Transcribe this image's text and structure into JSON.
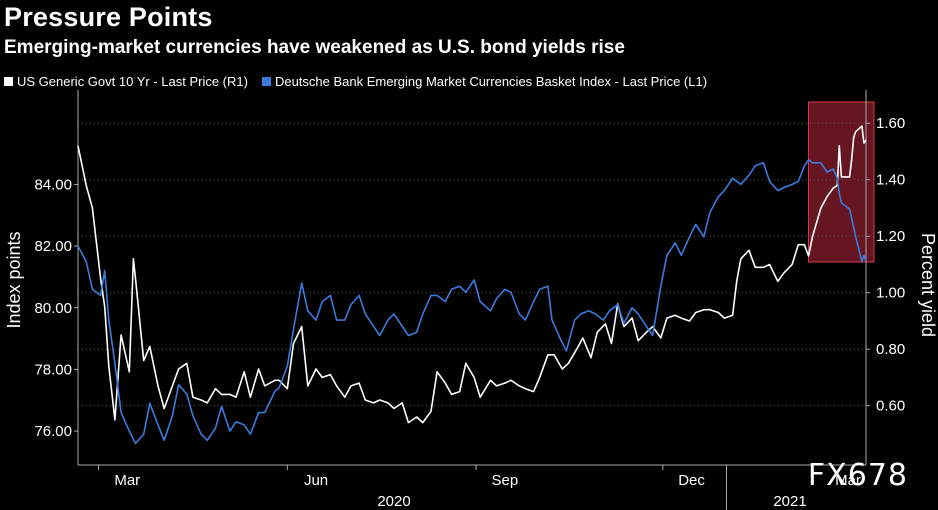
{
  "header": {
    "title": "Pressure Points",
    "subtitle": "Emerging-market currencies have weakened as U.S. bond yields rise"
  },
  "legend": [
    {
      "label": "US Generic Govt 10 Yr - Last Price (R1)",
      "color": "#ffffff"
    },
    {
      "label": "Deutsche Bank Emerging Market Currencies Basket Index - Last Price (L1)",
      "color": "#3b7bdc"
    }
  ],
  "watermark": "FX678",
  "chart_data": {
    "type": "line",
    "title": "Pressure Points",
    "subtitle": "Emerging-market currencies have weakened as U.S. bond yields rise",
    "ylabel_left": "Index points",
    "ylabel_right": "Percent yield",
    "ylim_left": [
      74.9,
      86.9
    ],
    "ylim_right": [
      0.39,
      1.7
    ],
    "yticks_left": [
      "76.00",
      "78.00",
      "80.00",
      "82.00",
      "84.00"
    ],
    "yticks_right": [
      "0.60",
      "0.80",
      "1.00",
      "1.20",
      "1.40",
      "1.60"
    ],
    "xticks": [
      "Mar",
      "Jun",
      "Sep",
      "Dec",
      "Mar"
    ],
    "year_labels": [
      "2020",
      "2021"
    ],
    "x_range": [
      "2020-02-20",
      "2021-03-10"
    ],
    "grid": true,
    "highlight": {
      "x_from": "2021-02-10",
      "x_to": "2021-03-10",
      "color": "#b8283a"
    },
    "series": [
      {
        "name": "US Generic Govt 10 Yr - Last Price (R1)",
        "axis": "right",
        "color": "#ffffff",
        "points": [
          [
            "2020-02-20",
            1.52
          ],
          [
            "2020-02-24",
            1.38
          ],
          [
            "2020-02-27",
            1.3
          ],
          [
            "2020-03-02",
            1.05
          ],
          [
            "2020-03-04",
            0.95
          ],
          [
            "2020-03-06",
            0.74
          ],
          [
            "2020-03-09",
            0.55
          ],
          [
            "2020-03-12",
            0.85
          ],
          [
            "2020-03-16",
            0.72
          ],
          [
            "2020-03-18",
            1.12
          ],
          [
            "2020-03-19",
            1.05
          ],
          [
            "2020-03-23",
            0.76
          ],
          [
            "2020-03-26",
            0.81
          ],
          [
            "2020-03-30",
            0.67
          ],
          [
            "2020-04-02",
            0.59
          ],
          [
            "2020-04-06",
            0.67
          ],
          [
            "2020-04-09",
            0.73
          ],
          [
            "2020-04-13",
            0.75
          ],
          [
            "2020-04-16",
            0.63
          ],
          [
            "2020-04-20",
            0.62
          ],
          [
            "2020-04-23",
            0.61
          ],
          [
            "2020-04-27",
            0.66
          ],
          [
            "2020-04-30",
            0.64
          ],
          [
            "2020-05-04",
            0.64
          ],
          [
            "2020-05-07",
            0.63
          ],
          [
            "2020-05-11",
            0.72
          ],
          [
            "2020-05-14",
            0.63
          ],
          [
            "2020-05-18",
            0.73
          ],
          [
            "2020-05-21",
            0.67
          ],
          [
            "2020-05-26",
            0.69
          ],
          [
            "2020-05-28",
            0.69
          ],
          [
            "2020-06-01",
            0.66
          ],
          [
            "2020-06-04",
            0.82
          ],
          [
            "2020-06-08",
            0.88
          ],
          [
            "2020-06-11",
            0.67
          ],
          [
            "2020-06-15",
            0.73
          ],
          [
            "2020-06-18",
            0.7
          ],
          [
            "2020-06-22",
            0.71
          ],
          [
            "2020-06-25",
            0.67
          ],
          [
            "2020-06-29",
            0.63
          ],
          [
            "2020-07-02",
            0.67
          ],
          [
            "2020-07-06",
            0.68
          ],
          [
            "2020-07-09",
            0.62
          ],
          [
            "2020-07-13",
            0.61
          ],
          [
            "2020-07-16",
            0.62
          ],
          [
            "2020-07-20",
            0.61
          ],
          [
            "2020-07-23",
            0.59
          ],
          [
            "2020-07-27",
            0.61
          ],
          [
            "2020-07-30",
            0.54
          ],
          [
            "2020-08-03",
            0.56
          ],
          [
            "2020-08-06",
            0.54
          ],
          [
            "2020-08-10",
            0.58
          ],
          [
            "2020-08-13",
            0.72
          ],
          [
            "2020-08-17",
            0.68
          ],
          [
            "2020-08-20",
            0.64
          ],
          [
            "2020-08-24",
            0.65
          ],
          [
            "2020-08-27",
            0.75
          ],
          [
            "2020-08-31",
            0.7
          ],
          [
            "2020-09-03",
            0.63
          ],
          [
            "2020-09-08",
            0.69
          ],
          [
            "2020-09-11",
            0.67
          ],
          [
            "2020-09-15",
            0.68
          ],
          [
            "2020-09-18",
            0.69
          ],
          [
            "2020-09-22",
            0.67
          ],
          [
            "2020-09-25",
            0.66
          ],
          [
            "2020-09-29",
            0.65
          ],
          [
            "2020-10-02",
            0.7
          ],
          [
            "2020-10-06",
            0.78
          ],
          [
            "2020-10-09",
            0.78
          ],
          [
            "2020-10-13",
            0.73
          ],
          [
            "2020-10-16",
            0.75
          ],
          [
            "2020-10-20",
            0.8
          ],
          [
            "2020-10-23",
            0.84
          ],
          [
            "2020-10-27",
            0.77
          ],
          [
            "2020-10-30",
            0.86
          ],
          [
            "2020-11-03",
            0.89
          ],
          [
            "2020-11-06",
            0.82
          ],
          [
            "2020-11-09",
            0.96
          ],
          [
            "2020-11-12",
            0.88
          ],
          [
            "2020-11-16",
            0.91
          ],
          [
            "2020-11-19",
            0.83
          ],
          [
            "2020-11-23",
            0.86
          ],
          [
            "2020-11-26",
            0.88
          ],
          [
            "2020-11-30",
            0.84
          ],
          [
            "2020-12-03",
            0.91
          ],
          [
            "2020-12-07",
            0.92
          ],
          [
            "2020-12-10",
            0.91
          ],
          [
            "2020-12-14",
            0.9
          ],
          [
            "2020-12-17",
            0.93
          ],
          [
            "2020-12-21",
            0.94
          ],
          [
            "2020-12-24",
            0.94
          ],
          [
            "2020-12-28",
            0.93
          ],
          [
            "2020-12-31",
            0.91
          ],
          [
            "2021-01-04",
            0.92
          ],
          [
            "2021-01-06",
            1.04
          ],
          [
            "2021-01-08",
            1.12
          ],
          [
            "2021-01-12",
            1.15
          ],
          [
            "2021-01-15",
            1.09
          ],
          [
            "2021-01-19",
            1.09
          ],
          [
            "2021-01-22",
            1.1
          ],
          [
            "2021-01-26",
            1.04
          ],
          [
            "2021-01-29",
            1.07
          ],
          [
            "2021-02-02",
            1.1
          ],
          [
            "2021-02-05",
            1.17
          ],
          [
            "2021-02-08",
            1.17
          ],
          [
            "2021-02-10",
            1.13
          ],
          [
            "2021-02-12",
            1.2
          ],
          [
            "2021-02-16",
            1.3
          ],
          [
            "2021-02-19",
            1.34
          ],
          [
            "2021-02-22",
            1.37
          ],
          [
            "2021-02-24",
            1.38
          ],
          [
            "2021-02-25",
            1.52
          ],
          [
            "2021-02-26",
            1.41
          ],
          [
            "2021-03-02",
            1.41
          ],
          [
            "2021-03-03",
            1.47
          ],
          [
            "2021-03-04",
            1.55
          ],
          [
            "2021-03-05",
            1.57
          ],
          [
            "2021-03-08",
            1.59
          ],
          [
            "2021-03-09",
            1.53
          ],
          [
            "2021-03-10",
            1.54
          ]
        ]
      },
      {
        "name": "Deutsche Bank Emerging Market Currencies Basket Index - Last Price (L1)",
        "axis": "left",
        "color": "#3b7bdc",
        "points": [
          [
            "2020-02-20",
            82.0
          ],
          [
            "2020-02-24",
            81.5
          ],
          [
            "2020-02-27",
            80.6
          ],
          [
            "2020-03-02",
            80.4
          ],
          [
            "2020-03-04",
            81.2
          ],
          [
            "2020-03-06",
            79.6
          ],
          [
            "2020-03-09",
            78.2
          ],
          [
            "2020-03-12",
            76.6
          ],
          [
            "2020-03-16",
            76.0
          ],
          [
            "2020-03-19",
            75.6
          ],
          [
            "2020-03-23",
            75.9
          ],
          [
            "2020-03-26",
            76.9
          ],
          [
            "2020-03-30",
            76.2
          ],
          [
            "2020-04-02",
            75.7
          ],
          [
            "2020-04-06",
            76.5
          ],
          [
            "2020-04-09",
            77.5
          ],
          [
            "2020-04-13",
            77.2
          ],
          [
            "2020-04-16",
            76.5
          ],
          [
            "2020-04-20",
            75.9
          ],
          [
            "2020-04-23",
            75.7
          ],
          [
            "2020-04-27",
            76.1
          ],
          [
            "2020-04-30",
            76.8
          ],
          [
            "2020-05-04",
            76.0
          ],
          [
            "2020-05-07",
            76.3
          ],
          [
            "2020-05-11",
            76.2
          ],
          [
            "2020-05-14",
            75.9
          ],
          [
            "2020-05-18",
            76.6
          ],
          [
            "2020-05-21",
            76.6
          ],
          [
            "2020-05-26",
            77.3
          ],
          [
            "2020-05-28",
            77.4
          ],
          [
            "2020-06-01",
            78.1
          ],
          [
            "2020-06-04",
            79.3
          ],
          [
            "2020-06-08",
            80.8
          ],
          [
            "2020-06-11",
            79.9
          ],
          [
            "2020-06-15",
            79.6
          ],
          [
            "2020-06-18",
            80.2
          ],
          [
            "2020-06-22",
            80.4
          ],
          [
            "2020-06-25",
            79.6
          ],
          [
            "2020-06-29",
            79.6
          ],
          [
            "2020-07-02",
            80.1
          ],
          [
            "2020-07-06",
            80.4
          ],
          [
            "2020-07-09",
            79.8
          ],
          [
            "2020-07-13",
            79.4
          ],
          [
            "2020-07-16",
            79.1
          ],
          [
            "2020-07-20",
            79.6
          ],
          [
            "2020-07-23",
            79.8
          ],
          [
            "2020-07-27",
            79.4
          ],
          [
            "2020-07-30",
            79.1
          ],
          [
            "2020-08-03",
            79.2
          ],
          [
            "2020-08-06",
            79.8
          ],
          [
            "2020-08-10",
            80.4
          ],
          [
            "2020-08-13",
            80.4
          ],
          [
            "2020-08-17",
            80.2
          ],
          [
            "2020-08-20",
            80.6
          ],
          [
            "2020-08-24",
            80.7
          ],
          [
            "2020-08-27",
            80.5
          ],
          [
            "2020-08-31",
            80.9
          ],
          [
            "2020-09-03",
            80.2
          ],
          [
            "2020-09-08",
            79.9
          ],
          [
            "2020-09-11",
            80.3
          ],
          [
            "2020-09-15",
            80.6
          ],
          [
            "2020-09-18",
            80.5
          ],
          [
            "2020-09-22",
            79.8
          ],
          [
            "2020-09-25",
            79.6
          ],
          [
            "2020-09-29",
            80.2
          ],
          [
            "2020-10-02",
            80.6
          ],
          [
            "2020-10-06",
            80.7
          ],
          [
            "2020-10-08",
            79.6
          ],
          [
            "2020-10-12",
            79.0
          ],
          [
            "2020-10-15",
            78.6
          ],
          [
            "2020-10-19",
            79.6
          ],
          [
            "2020-10-22",
            79.8
          ],
          [
            "2020-10-26",
            79.9
          ],
          [
            "2020-10-29",
            79.8
          ],
          [
            "2020-11-02",
            79.6
          ],
          [
            "2020-11-05",
            79.9
          ],
          [
            "2020-11-09",
            80.1
          ],
          [
            "2020-11-12",
            79.5
          ],
          [
            "2020-11-16",
            80.0
          ],
          [
            "2020-11-19",
            79.8
          ],
          [
            "2020-11-23",
            79.4
          ],
          [
            "2020-11-26",
            79.1
          ],
          [
            "2020-11-30",
            80.7
          ],
          [
            "2020-12-03",
            81.7
          ],
          [
            "2020-12-07",
            82.1
          ],
          [
            "2020-12-10",
            81.7
          ],
          [
            "2020-12-14",
            82.3
          ],
          [
            "2020-12-17",
            82.7
          ],
          [
            "2020-12-21",
            82.3
          ],
          [
            "2020-12-24",
            83.1
          ],
          [
            "2020-12-28",
            83.6
          ],
          [
            "2020-12-31",
            83.8
          ],
          [
            "2021-01-04",
            84.2
          ],
          [
            "2021-01-06",
            84.1
          ],
          [
            "2021-01-08",
            84.0
          ],
          [
            "2021-01-12",
            84.3
          ],
          [
            "2021-01-15",
            84.6
          ],
          [
            "2021-01-19",
            84.7
          ],
          [
            "2021-01-22",
            84.1
          ],
          [
            "2021-01-26",
            83.8
          ],
          [
            "2021-01-29",
            83.9
          ],
          [
            "2021-02-02",
            84.0
          ],
          [
            "2021-02-05",
            84.1
          ],
          [
            "2021-02-08",
            84.6
          ],
          [
            "2021-02-10",
            84.8
          ],
          [
            "2021-02-12",
            84.7
          ],
          [
            "2021-02-16",
            84.7
          ],
          [
            "2021-02-19",
            84.4
          ],
          [
            "2021-02-22",
            84.5
          ],
          [
            "2021-02-24",
            84.2
          ],
          [
            "2021-02-25",
            83.7
          ],
          [
            "2021-02-26",
            83.4
          ],
          [
            "2021-03-02",
            83.2
          ],
          [
            "2021-03-03",
            82.9
          ],
          [
            "2021-03-04",
            82.6
          ],
          [
            "2021-03-05",
            82.3
          ],
          [
            "2021-03-08",
            81.5
          ],
          [
            "2021-03-09",
            81.7
          ],
          [
            "2021-03-10",
            81.5
          ]
        ]
      }
    ]
  }
}
